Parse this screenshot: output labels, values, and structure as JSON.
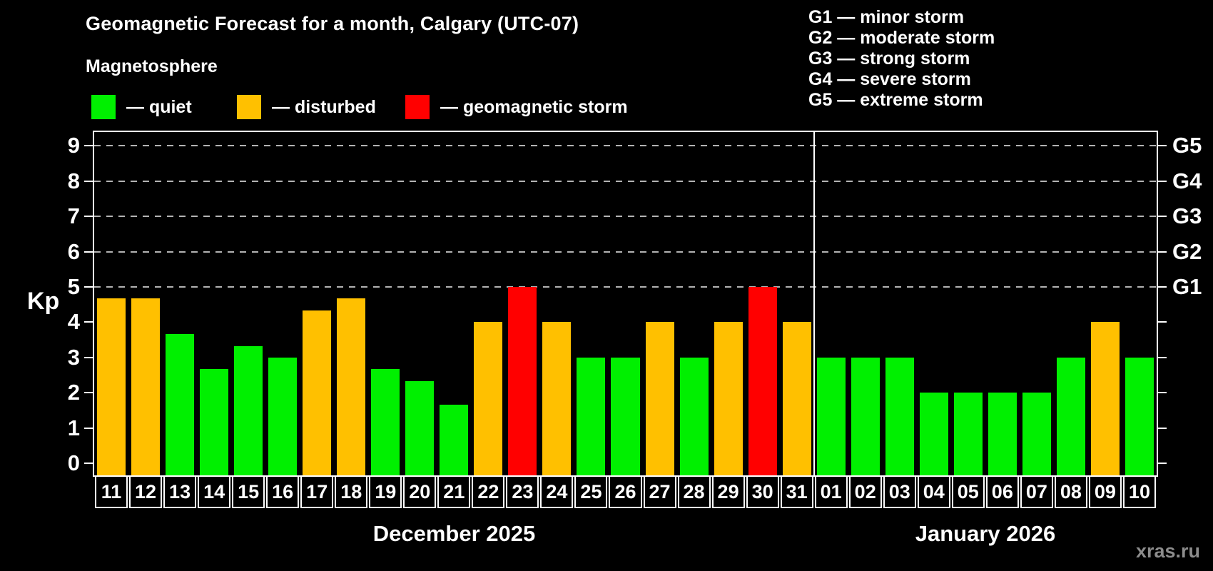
{
  "title": "Geomagnetic Forecast for a month, Calgary (UTC-07)",
  "subtitle": "Magnetosphere",
  "legend": [
    {
      "name": "quiet",
      "label": "— quiet",
      "color": "#00f000"
    },
    {
      "name": "disturbed",
      "label": "— disturbed",
      "color": "#ffc000"
    },
    {
      "name": "storm",
      "label": "— geomagnetic storm",
      "color": "#ff0000"
    }
  ],
  "storm_scale_legend": [
    "G1 — minor storm",
    "G2 — moderate storm",
    "G3 — strong storm",
    "G4 — severe storm",
    "G5 — extreme storm"
  ],
  "y_axis": {
    "label": "Kp",
    "ticks": [
      0,
      1,
      2,
      3,
      4,
      5,
      6,
      7,
      8,
      9
    ]
  },
  "right_axis": {
    "labels": [
      {
        "label": "G1",
        "kp": 5
      },
      {
        "label": "G2",
        "kp": 6
      },
      {
        "label": "G3",
        "kp": 7
      },
      {
        "label": "G4",
        "kp": 8
      },
      {
        "label": "G5",
        "kp": 9
      }
    ]
  },
  "watermark": "xras.ru",
  "chart_data": {
    "type": "bar",
    "title": "Geomagnetic Forecast for a month, Calgary (UTC-07)",
    "xlabel": "",
    "ylabel": "Kp",
    "ylim": [
      0,
      9
    ],
    "grid": "dashed horizontal at Kp 5-9 (G1-G5 storm levels)",
    "legend_position": "top-left",
    "status_colors": {
      "quiet": "#00f000",
      "disturbed": "#ffc000",
      "storm": "#ff0000"
    },
    "months": [
      {
        "label": "December 2025",
        "days": [
          {
            "day": "11",
            "kp": 4.67,
            "status": "disturbed"
          },
          {
            "day": "12",
            "kp": 4.67,
            "status": "disturbed"
          },
          {
            "day": "13",
            "kp": 3.67,
            "status": "quiet"
          },
          {
            "day": "14",
            "kp": 2.67,
            "status": "quiet"
          },
          {
            "day": "15",
            "kp": 3.33,
            "status": "quiet"
          },
          {
            "day": "16",
            "kp": 3,
            "status": "quiet"
          },
          {
            "day": "17",
            "kp": 4.33,
            "status": "disturbed"
          },
          {
            "day": "18",
            "kp": 4.67,
            "status": "disturbed"
          },
          {
            "day": "19",
            "kp": 2.67,
            "status": "quiet"
          },
          {
            "day": "20",
            "kp": 2.33,
            "status": "quiet"
          },
          {
            "day": "21",
            "kp": 1.67,
            "status": "quiet"
          },
          {
            "day": "22",
            "kp": 4,
            "status": "disturbed"
          },
          {
            "day": "23",
            "kp": 5,
            "status": "storm"
          },
          {
            "day": "24",
            "kp": 4,
            "status": "disturbed"
          },
          {
            "day": "25",
            "kp": 3,
            "status": "quiet"
          },
          {
            "day": "26",
            "kp": 3,
            "status": "quiet"
          },
          {
            "day": "27",
            "kp": 4,
            "status": "disturbed"
          },
          {
            "day": "28",
            "kp": 3,
            "status": "quiet"
          },
          {
            "day": "29",
            "kp": 4,
            "status": "disturbed"
          },
          {
            "day": "30",
            "kp": 5,
            "status": "storm"
          },
          {
            "day": "31",
            "kp": 4,
            "status": "disturbed"
          }
        ]
      },
      {
        "label": "January 2026",
        "days": [
          {
            "day": "01",
            "kp": 3,
            "status": "quiet"
          },
          {
            "day": "02",
            "kp": 3,
            "status": "quiet"
          },
          {
            "day": "03",
            "kp": 3,
            "status": "quiet"
          },
          {
            "day": "04",
            "kp": 2,
            "status": "quiet"
          },
          {
            "day": "05",
            "kp": 2,
            "status": "quiet"
          },
          {
            "day": "06",
            "kp": 2,
            "status": "quiet"
          },
          {
            "day": "07",
            "kp": 2,
            "status": "quiet"
          },
          {
            "day": "08",
            "kp": 3,
            "status": "quiet"
          },
          {
            "day": "09",
            "kp": 4,
            "status": "disturbed"
          },
          {
            "day": "10",
            "kp": 3,
            "status": "quiet"
          }
        ]
      }
    ]
  }
}
